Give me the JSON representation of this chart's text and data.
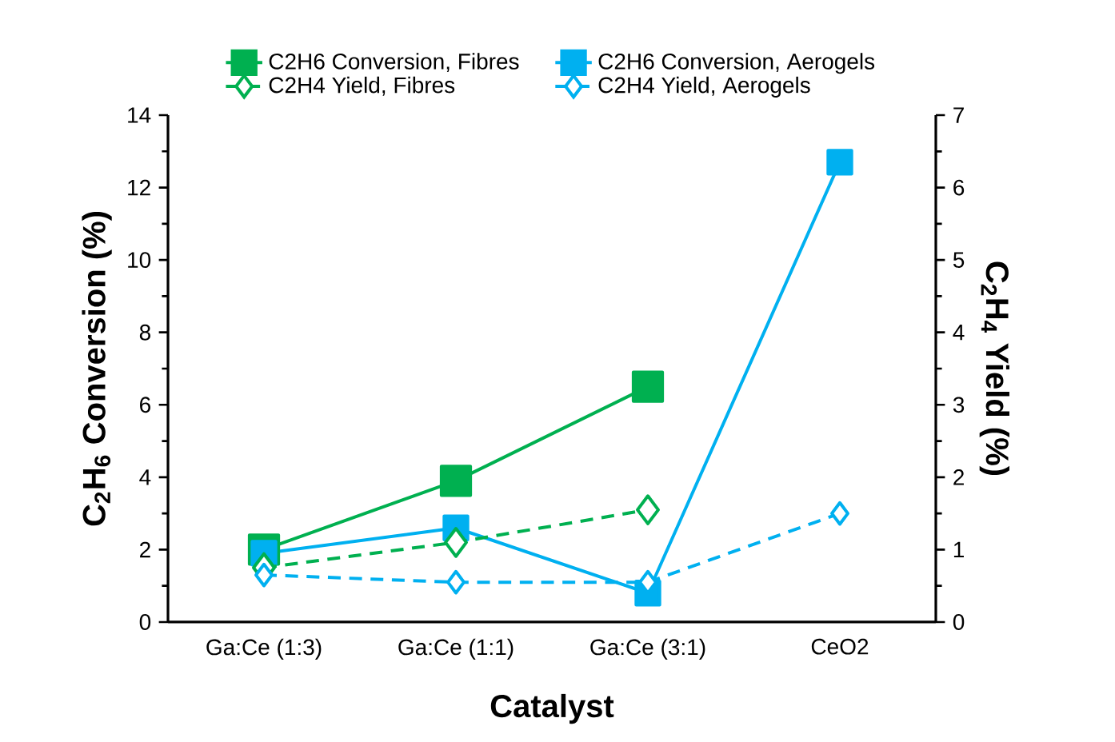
{
  "chart_data": {
    "type": "line",
    "xlabel": "Catalyst",
    "ylabel": "C$_{2}$H$_{6}$ Conversion (%)",
    "y2label": "C$_{2}$H$_{4}$ Yield (%)",
    "categories": [
      "Ga:Ce (1:3)",
      "Ga:Ce (1:1)",
      "Ga:Ce (3:1)",
      "CeO2"
    ],
    "series": [
      {
        "name": "C2H6 Conversion, Fibres",
        "color": "#00b050",
        "values": [
          2.0,
          3.9,
          6.5,
          null
        ],
        "marker": "square",
        "line_style": "solid"
      },
      {
        "name": "C2H6 Conversion, Aerogels",
        "color": "#00b0f0",
        "values": [
          1.9,
          2.6,
          0.8,
          12.7
        ],
        "marker": "square",
        "line_style": "solid"
      },
      {
        "name": "C2H4 Yield, Fibres",
        "color": "#00b050",
        "values": [
          0.75,
          1.1,
          1.55,
          null
        ],
        "marker": "diamond",
        "line_style": "dashed",
        "axis": "y2"
      },
      {
        "name": "C2H4 Yield, Aerogels",
        "color": "#00b0f0",
        "values": [
          0.65,
          0.55,
          0.55,
          1.5
        ],
        "marker": "diamond",
        "line_style": "dashed",
        "axis": "y2"
      }
    ],
    "ylim": [
      0,
      14
    ],
    "yticks": [
      0,
      2,
      4,
      6,
      8,
      10,
      12,
      14
    ],
    "y2lim": [
      0,
      7
    ],
    "y2ticks": [
      0,
      1,
      2,
      3,
      4,
      5,
      6,
      7
    ],
    "legend": "top"
  }
}
